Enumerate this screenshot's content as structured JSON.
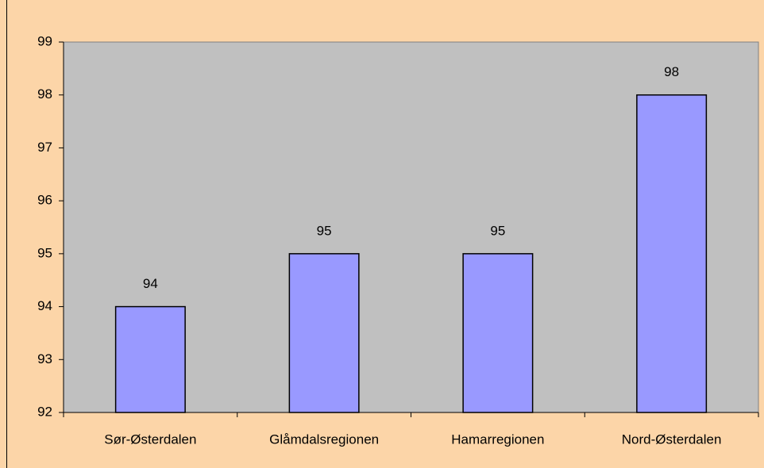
{
  "chart_data": {
    "type": "bar",
    "categories": [
      "Sør-Østerdalen",
      "Glåmdalsregionen",
      "Hamarregionen",
      "Nord-Østerdalen"
    ],
    "values": [
      94,
      95,
      95,
      98
    ],
    "color": "#9999ff",
    "ylim": [
      92,
      99
    ],
    "yticks": [
      92,
      93,
      94,
      95,
      96,
      97,
      98,
      99
    ],
    "grid": false
  }
}
